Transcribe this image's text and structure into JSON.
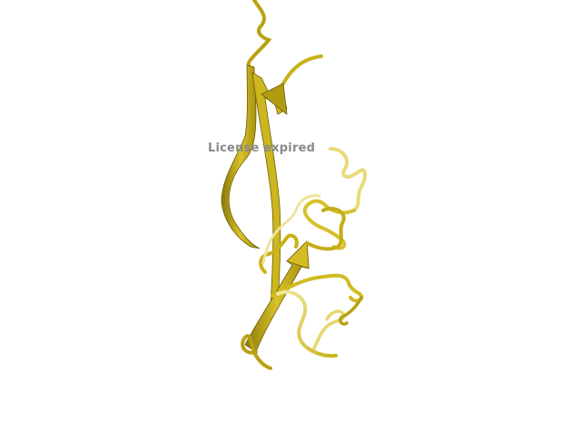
{
  "viewer": {
    "watermark_text": "License expired",
    "background_color": "#ffffff",
    "structure_color": "#c9b21a",
    "structure_dark": "#7a6a08",
    "structure_light": "#eee08a",
    "representation": "cartoon"
  }
}
